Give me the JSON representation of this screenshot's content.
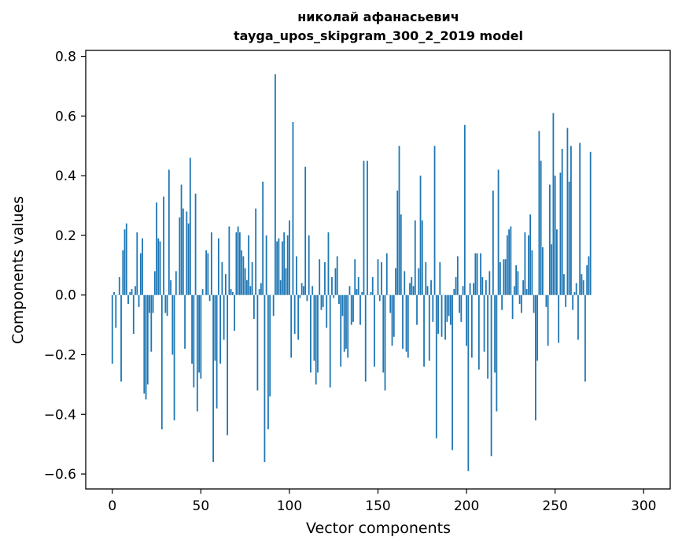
{
  "chart_data": {
    "type": "bar",
    "title_line1": "николай афанасьевич",
    "title_line2": "tayga_upos_skipgram_300_2_2019 model",
    "xlabel": "Vector components",
    "ylabel": "Components values",
    "xlim": [
      -15,
      315
    ],
    "ylim": [
      -0.65,
      0.82
    ],
    "xticks": [
      0,
      50,
      100,
      150,
      200,
      250,
      300
    ],
    "xtick_labels": [
      "0",
      "50",
      "100",
      "150",
      "200",
      "250",
      "300"
    ],
    "yticks": [
      -0.6,
      -0.4,
      -0.2,
      0.0,
      0.2,
      0.4,
      0.6,
      0.8
    ],
    "ytick_labels": [
      "−0.6",
      "−0.4",
      "−0.2",
      "0.0",
      "0.2",
      "0.4",
      "0.6",
      "0.8"
    ],
    "bar_color": "#1f77b4",
    "grid": false,
    "values": [
      -0.23,
      0.01,
      -0.11,
      0.0,
      0.06,
      -0.29,
      0.15,
      0.22,
      0.24,
      -0.03,
      0.01,
      0.02,
      -0.13,
      0.03,
      0.21,
      -0.04,
      0.14,
      0.19,
      -0.33,
      -0.35,
      -0.3,
      -0.06,
      -0.19,
      -0.06,
      0.08,
      0.31,
      0.19,
      0.18,
      -0.45,
      0.33,
      -0.06,
      -0.07,
      0.42,
      0.05,
      -0.2,
      -0.42,
      0.08,
      0.0,
      0.26,
      0.37,
      0.29,
      -0.18,
      0.28,
      0.24,
      0.46,
      -0.23,
      -0.31,
      0.34,
      -0.39,
      -0.26,
      -0.28,
      0.02,
      0.0,
      0.15,
      0.14,
      -0.02,
      0.21,
      -0.56,
      -0.22,
      -0.38,
      0.19,
      -0.23,
      0.11,
      -0.15,
      0.07,
      -0.47,
      0.23,
      0.02,
      0.01,
      -0.12,
      0.21,
      0.23,
      0.21,
      0.15,
      0.13,
      0.09,
      0.05,
      0.2,
      0.03,
      0.11,
      -0.08,
      0.29,
      -0.32,
      0.02,
      0.04,
      0.38,
      -0.56,
      0.2,
      -0.45,
      -0.34,
      0.0,
      -0.07,
      0.74,
      0.18,
      0.19,
      0.05,
      0.18,
      0.21,
      0.09,
      0.2,
      0.25,
      -0.21,
      0.58,
      -0.13,
      0.13,
      -0.15,
      -0.01,
      0.04,
      0.03,
      0.43,
      -0.02,
      0.2,
      -0.26,
      0.03,
      -0.22,
      -0.3,
      -0.26,
      0.12,
      -0.05,
      -0.04,
      0.11,
      -0.11,
      0.21,
      -0.31,
      0.06,
      -0.01,
      0.09,
      0.13,
      -0.03,
      -0.24,
      -0.07,
      -0.19,
      -0.18,
      -0.21,
      0.03,
      -0.1,
      -0.09,
      0.12,
      0.02,
      0.06,
      -0.1,
      0.01,
      0.45,
      -0.29,
      0.45,
      0.0,
      0.01,
      0.06,
      -0.24,
      0.0,
      0.12,
      -0.02,
      0.11,
      -0.26,
      -0.32,
      0.14,
      0.0,
      -0.06,
      -0.17,
      -0.14,
      0.09,
      0.35,
      0.5,
      0.27,
      -0.18,
      0.08,
      -0.19,
      -0.21,
      0.04,
      0.06,
      0.03,
      0.25,
      -0.1,
      0.09,
      0.4,
      0.25,
      -0.24,
      0.11,
      0.03,
      -0.22,
      0.05,
      -0.09,
      0.5,
      -0.48,
      -0.13,
      0.11,
      -0.14,
      0.0,
      -0.15,
      -0.09,
      -0.07,
      -0.1,
      -0.52,
      0.02,
      0.06,
      0.13,
      -0.06,
      -0.09,
      0.03,
      0.57,
      -0.17,
      -0.59,
      0.04,
      -0.21,
      0.04,
      0.14,
      0.14,
      -0.25,
      0.14,
      0.06,
      -0.19,
      0.05,
      -0.28,
      0.08,
      -0.54,
      0.35,
      -0.26,
      -0.39,
      0.42,
      0.11,
      -0.05,
      0.12,
      0.12,
      0.2,
      0.22,
      0.23,
      -0.08,
      0.03,
      0.1,
      0.08,
      -0.03,
      -0.06,
      0.05,
      0.21,
      0.02,
      0.2,
      0.27,
      0.15,
      -0.06,
      -0.42,
      -0.22,
      0.55,
      0.45,
      0.16,
      0.0,
      -0.04,
      -0.17,
      0.37,
      0.17,
      0.61,
      0.4,
      0.22,
      -0.16,
      0.41,
      0.49,
      0.07,
      -0.04,
      0.56,
      0.38,
      0.5,
      -0.05,
      0.01,
      0.04,
      -0.15,
      0.51,
      0.07,
      0.05,
      -0.29,
      0.1,
      0.13,
      0.48
    ]
  }
}
